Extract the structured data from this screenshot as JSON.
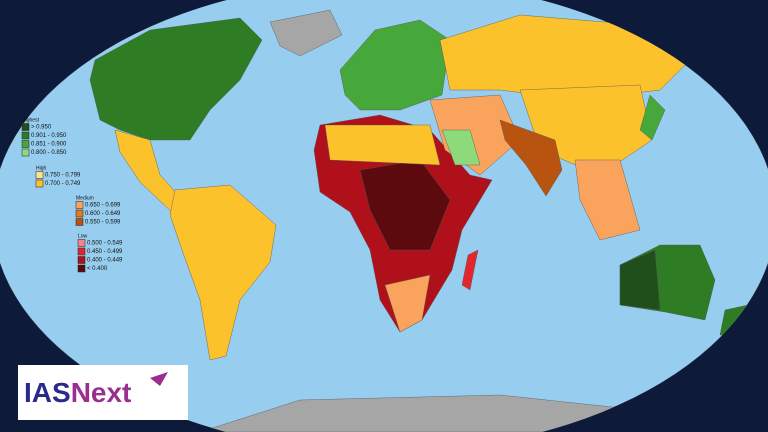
{
  "legend": {
    "groups": [
      {
        "title": "Highest",
        "items": [
          {
            "label": "> 0.950",
            "color": "#1f4f1a"
          },
          {
            "label": "0.901 - 0.950",
            "color": "#2e7d24"
          },
          {
            "label": "0.851 - 0.900",
            "color": "#46a83a"
          },
          {
            "label": "0.800 - 0.850",
            "color": "#8ed97a"
          }
        ]
      },
      {
        "title": "High",
        "items": [
          {
            "label": "0.750 - 0.799",
            "color": "#fde38a"
          },
          {
            "label": "0.700 - 0.749",
            "color": "#fcc22c"
          }
        ]
      },
      {
        "title": "Medium",
        "items": [
          {
            "label": "0.650 - 0.699",
            "color": "#f9a35c"
          },
          {
            "label": "0.600 - 0.649",
            "color": "#e6781f"
          },
          {
            "label": "0.550 - 0.599",
            "color": "#b8540f"
          }
        ]
      },
      {
        "title": "Low",
        "items": [
          {
            "label": "0.500 - 0.549",
            "color": "#f5828c"
          },
          {
            "label": "0.450 - 0.499",
            "color": "#e3262e"
          },
          {
            "label": "0.400 - 0.449",
            "color": "#b0101a"
          },
          {
            "label": "< 0.400",
            "color": "#5c0a0e"
          }
        ]
      }
    ]
  },
  "logo": {
    "first": "IAS",
    "second": "Next"
  }
}
